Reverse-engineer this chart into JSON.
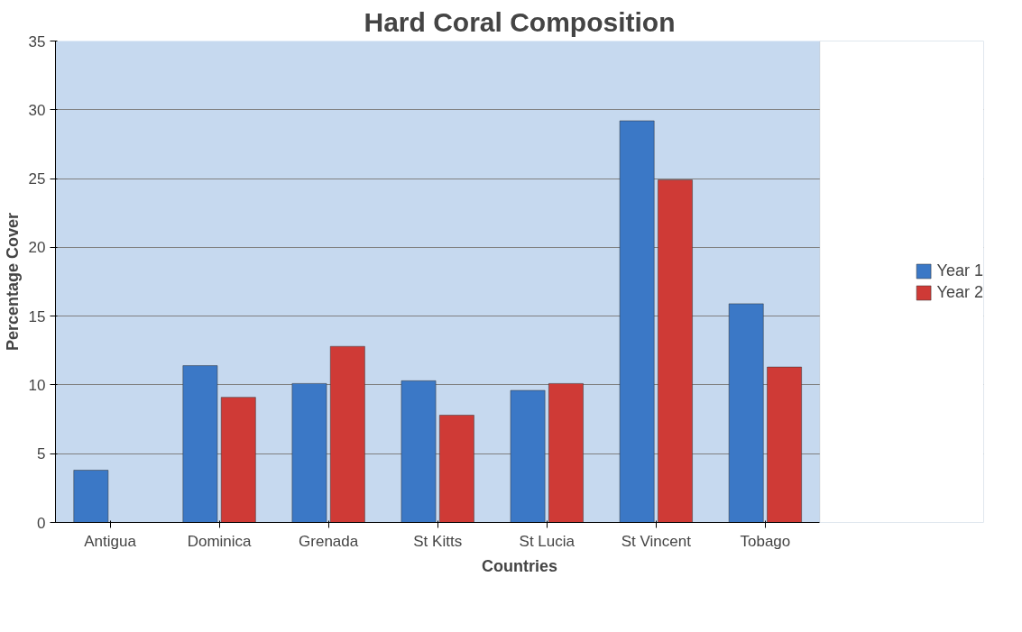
{
  "chart_data": {
    "type": "bar",
    "title": "Hard Coral Composition",
    "xlabel": "Countries",
    "ylabel": "Percentage Cover",
    "categories": [
      "Antigua",
      "Dominica",
      "Grenada",
      "St Kitts",
      "St Lucia",
      "St Vincent",
      "Tobago"
    ],
    "series": [
      {
        "name": "Year 1",
        "color": "#3b78c6",
        "values": [
          3.8,
          11.4,
          10.1,
          10.3,
          9.6,
          29.2,
          15.9
        ]
      },
      {
        "name": "Year 2",
        "color": "#cf3a36",
        "values": [
          null,
          9.1,
          12.8,
          7.8,
          10.1,
          24.9,
          11.3
        ]
      }
    ],
    "ylim": [
      0,
      35
    ],
    "yticks": [
      0,
      5,
      10,
      15,
      20,
      25,
      30,
      35
    ],
    "grid": "y",
    "legend": "right"
  }
}
